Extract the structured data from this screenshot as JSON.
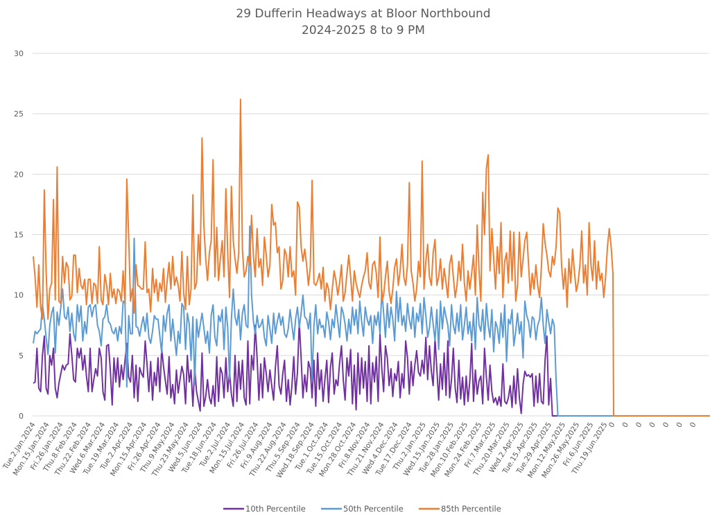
{
  "chart_data": {
    "type": "line",
    "title": "29 Dufferin Headways at Bloor Northbound",
    "subtitle": "2024-2025 8 to 9 PM",
    "xlabel": "",
    "ylabel": "",
    "ylim": [
      0,
      30
    ],
    "yticks": [
      0,
      5,
      10,
      15,
      20,
      25,
      30
    ],
    "grid": true,
    "legend_position": "bottom",
    "x_tick_labels": [
      "Tue.2.Jan.2024",
      "Mon.15.Jan.2024",
      "Fri.26.Jan.2024",
      "Thu.8.Feb.2024",
      "Thu.22.Feb.2024",
      "Wed.6.Mar.2024",
      "Tue.19.Mar.2024",
      "Tue.2.Apr.2024",
      "Mon.15.Apr.2024",
      "Fri.26.Apr.2024",
      "Thu.9.May.2024",
      "Thu.23.May.2024",
      "Wed.5.Jun.2024",
      "Tue.18.Jun.2024",
      "Tue.2.Jul.2024",
      "Mon.15.Jul.2024",
      "Fri.26.Jul.2024",
      "Fri.9.Aug.2024",
      "Thu.22.Aug.2024",
      "Thu.5.Sep.2024",
      "Wed.18.Sep.2024",
      "Tue.1.Oct.2024",
      "Tue.15.Oct.2024",
      "Mon.28.Oct.2024",
      "Fri.8.Nov.2024",
      "Thu.21.Nov.2024",
      "Wed.4.Dec.2024",
      "Tue.17.Dec.2024",
      "Thu.2.Jan.2025",
      "Wed.15.Jan.2025",
      "Tue.28.Jan.2025",
      "Mon.10.Feb.2025",
      "Mon.24.Feb.2025",
      "Fri.7.Mar.2025",
      "Thu.20.Mar.2025",
      "Wed.2.Apr.2025",
      "Tue.15.Apr.2025",
      "Tue.29.Apr.2025",
      "Mon.12.May.2025",
      "Mon.26.May.2025",
      "Fri.6.Jun.2025",
      "Thu.19.Jun.2025",
      "0",
      "0",
      "0",
      "0",
      "0",
      "0",
      "0"
    ],
    "series": [
      {
        "name": "10th Percentile",
        "color": "#7030a0",
        "values": [
          2.7,
          2.8,
          5.6,
          2.3,
          2.0,
          5.0,
          6.6,
          2.3,
          1.8,
          5.0,
          4.2,
          5.6,
          2.3,
          1.5,
          2.7,
          3.5,
          4.2,
          3.8,
          4.2,
          4.3,
          6.8,
          5.0,
          3.0,
          2.8,
          5.6,
          4.8,
          5.6,
          3.8,
          5.0,
          3.3,
          2.0,
          5.6,
          2.0,
          3.0,
          3.9,
          3.3,
          5.6,
          4.8,
          2.0,
          1.3,
          5.8,
          5.9,
          3.8,
          0.9,
          4.8,
          2.8,
          4.8,
          2.4,
          4.2,
          3.0,
          4.6,
          6.0,
          3.2,
          2.8,
          5.0,
          1.5,
          4.2,
          1.2,
          4.0,
          3.5,
          3.2,
          6.2,
          4.3,
          2.0,
          4.5,
          1.3,
          3.6,
          2.5,
          4.8,
          2.0,
          5.6,
          4.1,
          2.9,
          1.8,
          4.9,
          1.5,
          2.6,
          1.0,
          3.8,
          1.9,
          3.0,
          4.1,
          3.4,
          1.0,
          5.0,
          2.8,
          3.8,
          0.8,
          4.0,
          2.0,
          1.2,
          0.4,
          5.2,
          0.8,
          1.6,
          3.0,
          1.5,
          1.0,
          2.5,
          0.8,
          4.9,
          1.2,
          4.0,
          3.5,
          1.5,
          4.8,
          2.0,
          3.6,
          1.8,
          0.8,
          5.0,
          1.2,
          4.5,
          2.2,
          4.6,
          1.5,
          0.9,
          6.2,
          1.0,
          5.0,
          3.8,
          7.5,
          4.8,
          1.3,
          4.3,
          1.5,
          4.8,
          3.5,
          2.0,
          3.8,
          2.5,
          1.3,
          4.0,
          5.8,
          2.5,
          1.8,
          3.5,
          4.6,
          1.2,
          3.0,
          0.9,
          2.5,
          4.9,
          1.8,
          3.6,
          7.8,
          4.8,
          1.5,
          3.4,
          2.0,
          4.5,
          3.9,
          1.5,
          4.6,
          0.8,
          5.2,
          2.2,
          3.8,
          1.2,
          3.0,
          4.6,
          1.1,
          4.0,
          5.2,
          1.8,
          3.0,
          2.5,
          4.4,
          5.8,
          3.0,
          1.3,
          4.8,
          3.3,
          5.5,
          1.0,
          4.2,
          0.5,
          5.2,
          1.8,
          4.8,
          2.3,
          4.5,
          1.2,
          5.8,
          1.0,
          4.4,
          2.8,
          4.9,
          1.2,
          6.8,
          3.9,
          2.0,
          5.8,
          4.8,
          2.5,
          3.9,
          1.6,
          3.5,
          2.9,
          4.5,
          1.5,
          3.5,
          2.3,
          6.2,
          4.8,
          1.8,
          4.5,
          2.5,
          4.2,
          5.4,
          3.6,
          3.3,
          4.6,
          3.5,
          6.5,
          3.0,
          5.8,
          3.7,
          2.5,
          6.4,
          3.9,
          1.3,
          4.3,
          2.2,
          5.2,
          1.7,
          6.2,
          1.5,
          3.0,
          5.6,
          2.3,
          1.1,
          4.6,
          1.4,
          3.2,
          0.9,
          3.3,
          1.2,
          2.9,
          6.0,
          1.2,
          3.8,
          1.8,
          2.9,
          3.3,
          1.0,
          5.6,
          3.2,
          1.3,
          4.2,
          2.0,
          1.1,
          1.5,
          0.9,
          1.6,
          0.8,
          4.3,
          1.2,
          1.0,
          1.5,
          2.5,
          0.7,
          3.3,
          1.0,
          3.9,
          1.5,
          0.2,
          2.6,
          3.7,
          3.3,
          3.4,
          3.2,
          3.5,
          0.8,
          3.3,
          1.1,
          3.5,
          1.2,
          1.0,
          4.6,
          6.6,
          0.9,
          3.1,
          0.0,
          0.0,
          0.0,
          0.0,
          0.0,
          0.0,
          0.0,
          0.0,
          0.0,
          0.0,
          0.0,
          0.0,
          0.0,
          0.0,
          0.0,
          0.0,
          0.0,
          0.0,
          0.0,
          0.0,
          0.0,
          0.0,
          0.0,
          0.0,
          0.0,
          0.0,
          0.0,
          0.0,
          0.0,
          0.0,
          0.0,
          0.0,
          0.0,
          0.0,
          0.0,
          0.0,
          0.0,
          0.0,
          0.0,
          0.0,
          0.0,
          0.0,
          0.0,
          0.0,
          0.0,
          0.0,
          0.0,
          0.0,
          0.0,
          0.0
        ]
      },
      {
        "name": "50th Percentile",
        "color": "#5b9bd5",
        "values": [
          6.0,
          7.0,
          6.8,
          7.0,
          7.2,
          9.2,
          8.0,
          6.5,
          5.1,
          7.5,
          8.5,
          9.0,
          5.2,
          8.6,
          7.5,
          9.0,
          10.5,
          8.2,
          8.0,
          9.0,
          7.0,
          8.5,
          6.8,
          6.2,
          9.2,
          7.8,
          9.1,
          6.2,
          7.8,
          6.8,
          9.0,
          9.2,
          8.2,
          9.0,
          9.2,
          7.5,
          7.0,
          5.8,
          8.0,
          8.2,
          9.2,
          7.8,
          7.6,
          7.0,
          6.8,
          7.3,
          6.2,
          7.4,
          6.8,
          9.5,
          9.3,
          2.4,
          8.3,
          6.8,
          6.8,
          14.7,
          7.4,
          7.3,
          6.6,
          7.5,
          8.2,
          7.0,
          8.5,
          6.5,
          6.0,
          7.0,
          8.3,
          8.0,
          8.0,
          6.6,
          5.2,
          8.3,
          7.0,
          8.5,
          9.2,
          6.2,
          8.0,
          6.5,
          5.0,
          7.0,
          6.0,
          9.3,
          9.0,
          5.5,
          8.5,
          7.6,
          4.6,
          8.2,
          2.6,
          8.0,
          6.5,
          7.5,
          8.5,
          7.3,
          6.0,
          7.0,
          5.2,
          8.3,
          9.2,
          6.5,
          5.8,
          8.3,
          7.8,
          8.8,
          5.5,
          9.0,
          7.3,
          3.0,
          8.0,
          10.5,
          8.2,
          7.5,
          8.8,
          6.3,
          8.5,
          9.2,
          7.5,
          7.3,
          15.7,
          10.0,
          7.8,
          6.8,
          8.3,
          7.3,
          7.5,
          8.0,
          6.5,
          5.8,
          8.3,
          7.2,
          6.0,
          8.5,
          6.8,
          7.8,
          8.5,
          7.5,
          8.2,
          6.8,
          6.5,
          7.2,
          8.8,
          7.5,
          6.3,
          8.0,
          9.0,
          7.3,
          8.5,
          10.0,
          8.2,
          8.0,
          7.2,
          8.5,
          3.0,
          7.5,
          9.2,
          6.8,
          8.0,
          7.3,
          7.5,
          6.5,
          8.6,
          7.8,
          6.3,
          8.0,
          7.3,
          9.2,
          7.8,
          6.5,
          9.0,
          8.5,
          7.6,
          6.2,
          8.0,
          6.8,
          9.0,
          7.5,
          8.8,
          6.8,
          9.5,
          7.8,
          6.6,
          9.0,
          8.0,
          7.5,
          8.3,
          6.0,
          8.3,
          7.5,
          8.6,
          6.8,
          10.4,
          8.5,
          6.5,
          9.3,
          7.3,
          9.0,
          8.0,
          6.2,
          10.3,
          7.8,
          9.8,
          7.5,
          8.3,
          7.0,
          9.3,
          8.0,
          7.2,
          9.0,
          6.5,
          8.5,
          7.8,
          9.3,
          6.8,
          9.8,
          8.3,
          6.5,
          7.3,
          9.0,
          7.6,
          6.2,
          8.8,
          5.5,
          9.5,
          7.2,
          9.0,
          8.2,
          7.5,
          5.8,
          9.2,
          7.5,
          6.8,
          8.5,
          7.0,
          9.2,
          6.3,
          7.5,
          9.0,
          6.8,
          7.8,
          6.2,
          8.5,
          5.5,
          9.8,
          7.5,
          7.0,
          8.8,
          6.3,
          9.3,
          7.5,
          6.5,
          8.8,
          5.3,
          7.8,
          7.3,
          6.0,
          8.5,
          6.5,
          9.2,
          4.5,
          8.0,
          7.6,
          8.8,
          5.8,
          7.0,
          8.5,
          6.8,
          7.8,
          4.8,
          9.5,
          8.3,
          7.8,
          6.5,
          8.2,
          8.0,
          6.3,
          7.5,
          8.0,
          9.8,
          7.5,
          6.0,
          8.8,
          7.8,
          6.8,
          8.0,
          7.5,
          3.0,
          0.0,
          0.0,
          0.0,
          0.0,
          0.0,
          0.0,
          0.0,
          0.0,
          0.0,
          0.0,
          0.0,
          0.0,
          0.0,
          0.0,
          0.0,
          0.0,
          0.0,
          0.0,
          0.0,
          0.0,
          0.0,
          0.0,
          0.0,
          0.0,
          0.0,
          0.0,
          0.0,
          0.0,
          0.0,
          0.0,
          0.0,
          0.0,
          0.0,
          0.0,
          0.0,
          0.0,
          0.0,
          0.0,
          0.0,
          0.0,
          0.0,
          0.0,
          0.0,
          0.0,
          0.0,
          0.0,
          0.0,
          0.0,
          0.0,
          0.0
        ]
      },
      {
        "name": "85th Percentile",
        "color": "#ed7d31",
        "values": [
          13.2,
          11.5,
          9.0,
          12.5,
          9.0,
          8.0,
          18.7,
          12.0,
          8.0,
          10.5,
          11.0,
          17.9,
          9.6,
          20.6,
          9.5,
          9.3,
          13.2,
          11.0,
          12.7,
          12.3,
          9.6,
          9.9,
          13.3,
          13.3,
          10.2,
          12.2,
          10.8,
          10.5,
          11.3,
          9.2,
          11.3,
          11.3,
          9.3,
          11.0,
          10.8,
          9.3,
          14.0,
          9.6,
          9.2,
          11.7,
          10.8,
          9.2,
          11.8,
          9.8,
          10.5,
          9.3,
          10.5,
          10.3,
          9.5,
          12.0,
          9.3,
          19.6,
          14.8,
          9.5,
          10.5,
          8.5,
          12.5,
          10.8,
          10.7,
          10.5,
          10.5,
          14.4,
          10.2,
          10.5,
          8.6,
          12.2,
          10.2,
          11.3,
          9.5,
          11.0,
          10.3,
          12.2,
          9.4,
          11.2,
          12.7,
          10.5,
          13.2,
          10.8,
          11.5,
          10.8,
          9.5,
          13.6,
          10.2,
          8.8,
          13.2,
          9.2,
          10.5,
          18.3,
          10.5,
          11.0,
          15.0,
          12.5,
          23.0,
          15.8,
          13.0,
          11.2,
          13.5,
          14.5,
          21.2,
          11.5,
          15.6,
          11.2,
          13.0,
          14.5,
          11.5,
          18.8,
          13.5,
          9.8,
          19.0,
          14.5,
          13.0,
          11.8,
          13.5,
          26.2,
          13.8,
          11.5,
          12.0,
          13.2,
          12.5,
          16.6,
          13.2,
          11.5,
          15.5,
          12.3,
          13.0,
          10.8,
          14.8,
          13.3,
          11.5,
          12.5,
          17.5,
          15.8,
          16.0,
          13.5,
          14.0,
          10.5,
          11.2,
          13.8,
          13.3,
          11.5,
          14.0,
          11.5,
          12.0,
          10.0,
          17.7,
          17.3,
          14.0,
          12.8,
          13.8,
          12.5,
          10.8,
          12.3,
          19.5,
          11.0,
          10.8,
          11.2,
          11.8,
          10.5,
          12.3,
          9.5,
          11.0,
          10.5,
          8.8,
          10.5,
          12.0,
          11.2,
          10.0,
          11.0,
          12.5,
          9.5,
          10.2,
          11.8,
          13.3,
          11.5,
          9.5,
          12.0,
          11.0,
          10.3,
          9.8,
          10.8,
          11.5,
          12.0,
          13.5,
          11.0,
          10.5,
          12.5,
          12.8,
          11.8,
          9.8,
          14.8,
          9.5,
          10.0,
          11.5,
          12.8,
          10.3,
          9.3,
          10.5,
          12.3,
          13.0,
          10.8,
          12.0,
          14.2,
          11.5,
          10.8,
          12.5,
          19.3,
          12.0,
          11.0,
          9.5,
          10.5,
          12.8,
          11.5,
          21.1,
          10.5,
          12.8,
          14.2,
          11.5,
          10.8,
          13.5,
          14.6,
          10.8,
          11.5,
          13.0,
          10.5,
          12.2,
          11.0,
          9.8,
          12.5,
          13.3,
          11.5,
          9.8,
          10.8,
          12.8,
          11.2,
          14.2,
          11.0,
          9.5,
          12.0,
          10.5,
          11.8,
          13.3,
          10.0,
          15.8,
          12.0,
          9.5,
          18.5,
          15.0,
          20.5,
          21.6,
          12.0,
          15.5,
          13.0,
          10.5,
          14.0,
          11.8,
          16.0,
          9.8,
          12.8,
          13.5,
          11.0,
          15.3,
          11.2,
          15.2,
          9.5,
          10.8,
          15.2,
          11.5,
          13.0,
          14.5,
          15.2,
          12.5,
          10.0,
          11.8,
          10.5,
          12.5,
          10.8,
          9.8,
          12.3,
          15.9,
          14.3,
          13.3,
          12.0,
          11.5,
          13.2,
          12.5,
          14.0,
          17.2,
          16.8,
          12.5,
          10.5,
          12.2,
          9.0,
          13.0,
          11.0,
          13.8,
          12.0,
          10.3,
          11.0,
          12.5,
          15.3,
          11.0,
          12.5,
          10.0,
          16.0,
          12.5,
          11.2,
          14.5,
          10.5,
          12.8,
          11.2,
          11.8,
          9.8,
          11.5,
          14.0,
          15.5,
          14.0,
          11.8,
          0.0,
          0.0,
          0.0,
          0.0,
          0.0,
          0.0,
          0.0,
          0.0,
          0.0,
          0.0,
          0.0,
          0.0,
          0.0,
          0.0,
          0.0,
          0.0,
          0.0,
          0.0,
          0.0,
          0.0,
          0.0,
          0.0,
          0.0,
          0.0,
          0.0,
          0.0,
          0.0,
          0.0,
          0.0,
          0.0,
          0.0,
          0.0,
          0.0,
          0.0,
          0.0,
          0.0,
          0.0,
          0.0,
          0.0,
          0.0,
          0.0,
          0.0,
          0.0,
          0.0,
          0.0,
          0.0,
          0.0,
          0.0,
          0.0,
          0.0
        ]
      }
    ]
  }
}
